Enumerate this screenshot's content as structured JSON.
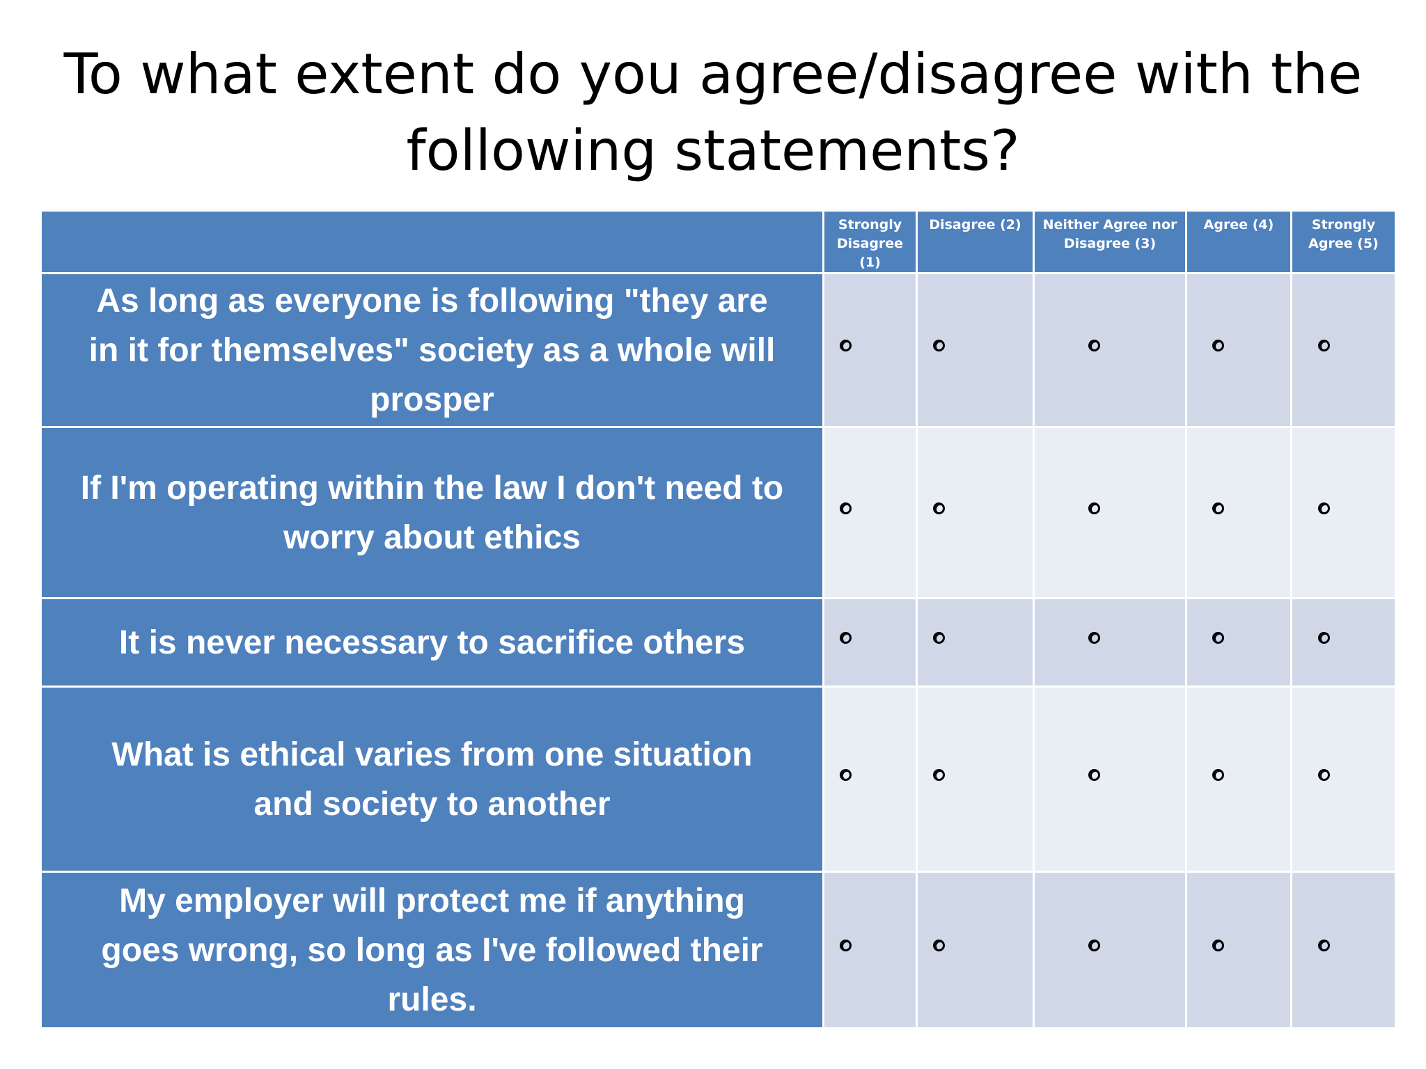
{
  "title": {
    "line1": "To what extent do you agree/disagree with the",
    "line2": "following statements?"
  },
  "columns": [
    {
      "line1": "Strongly",
      "line2": "Disagree",
      "line3": "(1)"
    },
    {
      "line1": "Disagree (2)",
      "line2": "",
      "line3": ""
    },
    {
      "line1": "Neither Agree nor",
      "line2": "Disagree (3)",
      "line3": ""
    },
    {
      "line1": "Agree (4)",
      "line2": "",
      "line3": ""
    },
    {
      "line1": "Strongly",
      "line2": "Agree (5)",
      "line3": ""
    }
  ],
  "statements": [
    {
      "lines": [
        "As long as everyone is following \"they are",
        "in it for themselves\" society as a whole will",
        "prosper"
      ],
      "selected": null
    },
    {
      "lines": [
        "If I'm operating within the law I don't need to",
        "worry about ethics"
      ],
      "selected": null
    },
    {
      "lines": [
        "It is never necessary to sacrifice others"
      ],
      "selected": null
    },
    {
      "lines": [
        "What is ethical varies from one situation",
        "and society to another"
      ],
      "selected": null
    },
    {
      "lines": [
        "My employer will protect me if anything",
        "goes wrong, so long as I've followed their",
        "rules."
      ],
      "selected": null
    }
  ],
  "colors": {
    "header_blue": "#4f81bd",
    "row_shade_dark": "#d0d8e8",
    "row_shade_light": "#e9edf4"
  }
}
